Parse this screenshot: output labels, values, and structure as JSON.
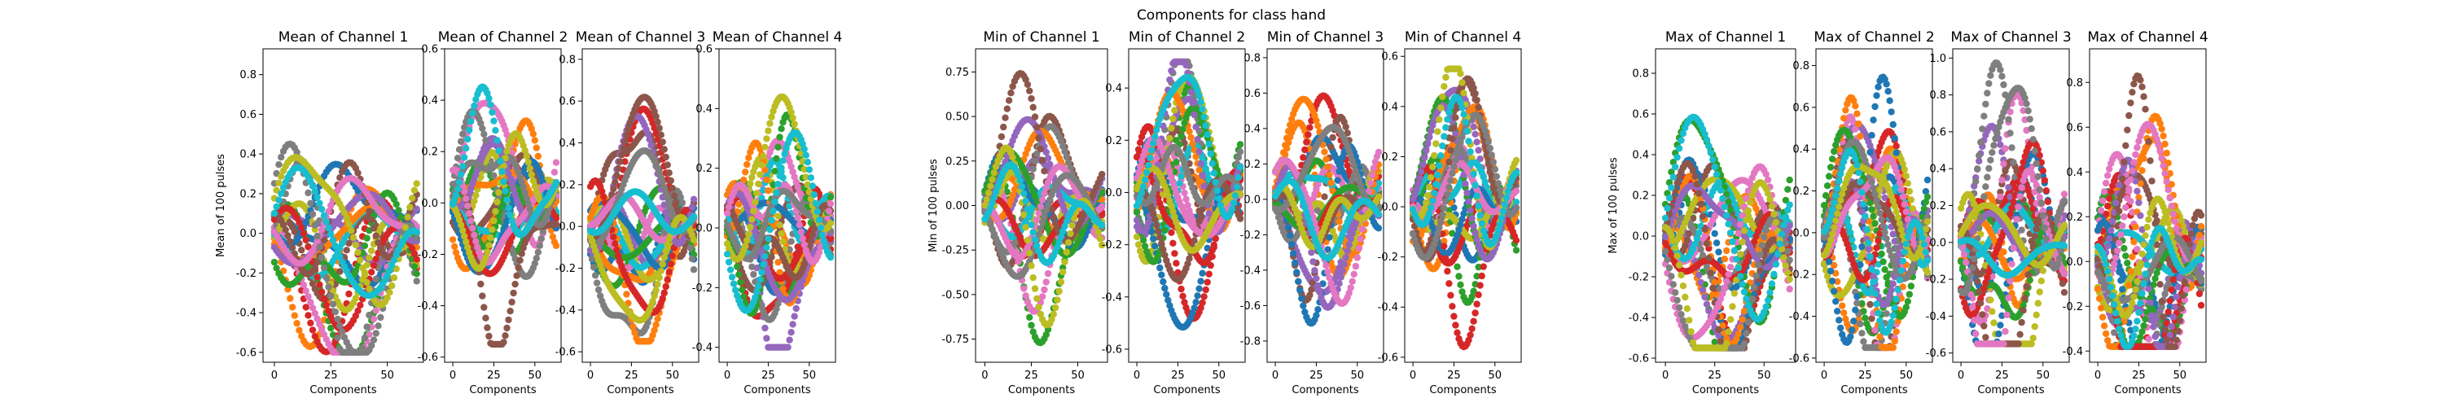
{
  "figure": {
    "suptitle": "Components for class hand"
  },
  "palette": [
    "#1f77b4",
    "#ff7f0e",
    "#2ca02c",
    "#d62728",
    "#9467bd",
    "#8c564b",
    "#e377c2",
    "#7f7f7f",
    "#bcbd22",
    "#17becf"
  ],
  "chart_data": [
    {
      "type": "scatter",
      "title": "Mean of Channel 1",
      "xlabel": "Components",
      "ylabel": "Mean of 100 pulses",
      "xlim": [
        -5,
        66
      ],
      "ylim": [
        -0.65,
        0.93
      ],
      "xticks": [
        0,
        25,
        50
      ],
      "yticks": [
        -0.6,
        -0.4,
        -0.2,
        0.0,
        0.2,
        0.4,
        0.6,
        0.8
      ],
      "tick_decimals": 1,
      "n_series": 20,
      "n_points": 64,
      "seed": 11,
      "peak": 0.85,
      "trough": -0.6,
      "freq": 1.4
    },
    {
      "type": "scatter",
      "title": "Mean of Channel 2",
      "xlabel": "Components",
      "ylabel": "",
      "xlim": [
        -5,
        66
      ],
      "ylim": [
        -0.62,
        0.6
      ],
      "xticks": [
        0,
        25,
        50
      ],
      "yticks": [
        -0.6,
        -0.4,
        -0.2,
        0.0,
        0.2,
        0.4,
        0.6
      ],
      "tick_decimals": 1,
      "n_series": 20,
      "n_points": 64,
      "seed": 23,
      "peak": 0.55,
      "trough": -0.55,
      "freq": 1.6
    },
    {
      "type": "scatter",
      "title": "Mean of Channel 3",
      "xlabel": "Components",
      "ylabel": "",
      "xlim": [
        -5,
        66
      ],
      "ylim": [
        -0.65,
        0.85
      ],
      "xticks": [
        0,
        25,
        50
      ],
      "yticks": [
        -0.6,
        -0.4,
        -0.2,
        0.0,
        0.2,
        0.4,
        0.6,
        0.8
      ],
      "tick_decimals": 1,
      "n_series": 20,
      "n_points": 64,
      "seed": 37,
      "peak": 0.75,
      "trough": -0.55,
      "freq": 1.3
    },
    {
      "type": "scatter",
      "title": "Mean of Channel 4",
      "xlabel": "Components",
      "ylabel": "",
      "xlim": [
        -5,
        66
      ],
      "ylim": [
        -0.45,
        0.6
      ],
      "xticks": [
        0,
        25,
        50
      ],
      "yticks": [
        -0.4,
        -0.2,
        0.0,
        0.2,
        0.4,
        0.6
      ],
      "tick_decimals": 1,
      "n_series": 20,
      "n_points": 64,
      "seed": 41,
      "peak": 0.55,
      "trough": -0.4,
      "freq": 1.5
    },
    {
      "type": "scatter",
      "title": "Min of Channel 1",
      "xlabel": "Components",
      "ylabel": "Min of 100 pulses",
      "xlim": [
        -5,
        66
      ],
      "ylim": [
        -0.88,
        0.88
      ],
      "xticks": [
        0,
        25,
        50
      ],
      "yticks": [
        -0.75,
        -0.5,
        -0.25,
        0.0,
        0.25,
        0.5,
        0.75
      ],
      "tick_decimals": 2,
      "n_series": 20,
      "n_points": 64,
      "seed": 53,
      "peak": 0.83,
      "trough": -0.8,
      "freq": 1.4
    },
    {
      "type": "scatter",
      "title": "Min of Channel 2",
      "xlabel": "Components",
      "ylabel": "",
      "xlim": [
        -5,
        66
      ],
      "ylim": [
        -0.65,
        0.55
      ],
      "xticks": [
        0,
        25,
        50
      ],
      "yticks": [
        -0.6,
        -0.4,
        -0.2,
        0.0,
        0.2,
        0.4
      ],
      "tick_decimals": 1,
      "n_series": 20,
      "n_points": 64,
      "seed": 61,
      "peak": 0.5,
      "trough": -0.6,
      "freq": 1.6
    },
    {
      "type": "scatter",
      "title": "Min of Channel 3",
      "xlabel": "Components",
      "ylabel": "",
      "xlim": [
        -5,
        66
      ],
      "ylim": [
        -0.92,
        0.85
      ],
      "xticks": [
        0,
        25,
        50
      ],
      "yticks": [
        -0.8,
        -0.6,
        -0.4,
        -0.2,
        0.0,
        0.2,
        0.4,
        0.6,
        0.8
      ],
      "tick_decimals": 1,
      "n_series": 20,
      "n_points": 64,
      "seed": 71,
      "peak": 0.78,
      "trough": -0.85,
      "freq": 1.3
    },
    {
      "type": "scatter",
      "title": "Min of Channel 4",
      "xlabel": "Components",
      "ylabel": "",
      "xlim": [
        -5,
        66
      ],
      "ylim": [
        -0.62,
        0.63
      ],
      "xticks": [
        0,
        25,
        50
      ],
      "yticks": [
        -0.6,
        -0.4,
        -0.2,
        0.0,
        0.2,
        0.4,
        0.6
      ],
      "tick_decimals": 1,
      "n_series": 20,
      "n_points": 64,
      "seed": 83,
      "peak": 0.55,
      "trough": -0.58,
      "freq": 1.5
    },
    {
      "type": "scatter",
      "title": "Max of Channel 1",
      "xlabel": "Components",
      "ylabel": "Max of 100 pulses",
      "xlim": [
        -5,
        66
      ],
      "ylim": [
        -0.62,
        0.92
      ],
      "xticks": [
        0,
        25,
        50
      ],
      "yticks": [
        -0.6,
        -0.4,
        -0.2,
        0.0,
        0.2,
        0.4,
        0.6,
        0.8
      ],
      "tick_decimals": 1,
      "n_series": 20,
      "n_points": 64,
      "seed": 97,
      "peak": 0.85,
      "trough": -0.55,
      "freq": 1.4
    },
    {
      "type": "scatter",
      "title": "Max of Channel 2",
      "xlabel": "Components",
      "ylabel": "",
      "xlim": [
        -5,
        66
      ],
      "ylim": [
        -0.62,
        0.88
      ],
      "xticks": [
        0,
        25,
        50
      ],
      "yticks": [
        -0.6,
        -0.4,
        -0.2,
        0.0,
        0.2,
        0.4,
        0.6,
        0.8
      ],
      "tick_decimals": 1,
      "n_series": 20,
      "n_points": 64,
      "seed": 103,
      "peak": 0.82,
      "trough": -0.55,
      "freq": 1.6
    },
    {
      "type": "scatter",
      "title": "Max of Channel 3",
      "xlabel": "Components",
      "ylabel": "",
      "xlim": [
        -5,
        66
      ],
      "ylim": [
        -0.65,
        1.05
      ],
      "xticks": [
        0,
        25,
        50
      ],
      "yticks": [
        -0.6,
        -0.4,
        -0.2,
        0.0,
        0.2,
        0.4,
        0.6,
        0.8,
        1.0
      ],
      "tick_decimals": 1,
      "n_series": 20,
      "n_points": 64,
      "seed": 113,
      "peak": 1.0,
      "trough": -0.55,
      "freq": 1.3
    },
    {
      "type": "scatter",
      "title": "Max of Channel 4",
      "xlabel": "Components",
      "ylabel": "",
      "xlim": [
        -5,
        66
      ],
      "ylim": [
        -0.45,
        0.95
      ],
      "xticks": [
        0,
        25,
        50
      ],
      "yticks": [
        -0.4,
        -0.2,
        0.0,
        0.2,
        0.4,
        0.6,
        0.8
      ],
      "tick_decimals": 1,
      "n_series": 20,
      "n_points": 64,
      "seed": 127,
      "peak": 0.88,
      "trough": -0.38,
      "freq": 1.5
    }
  ]
}
